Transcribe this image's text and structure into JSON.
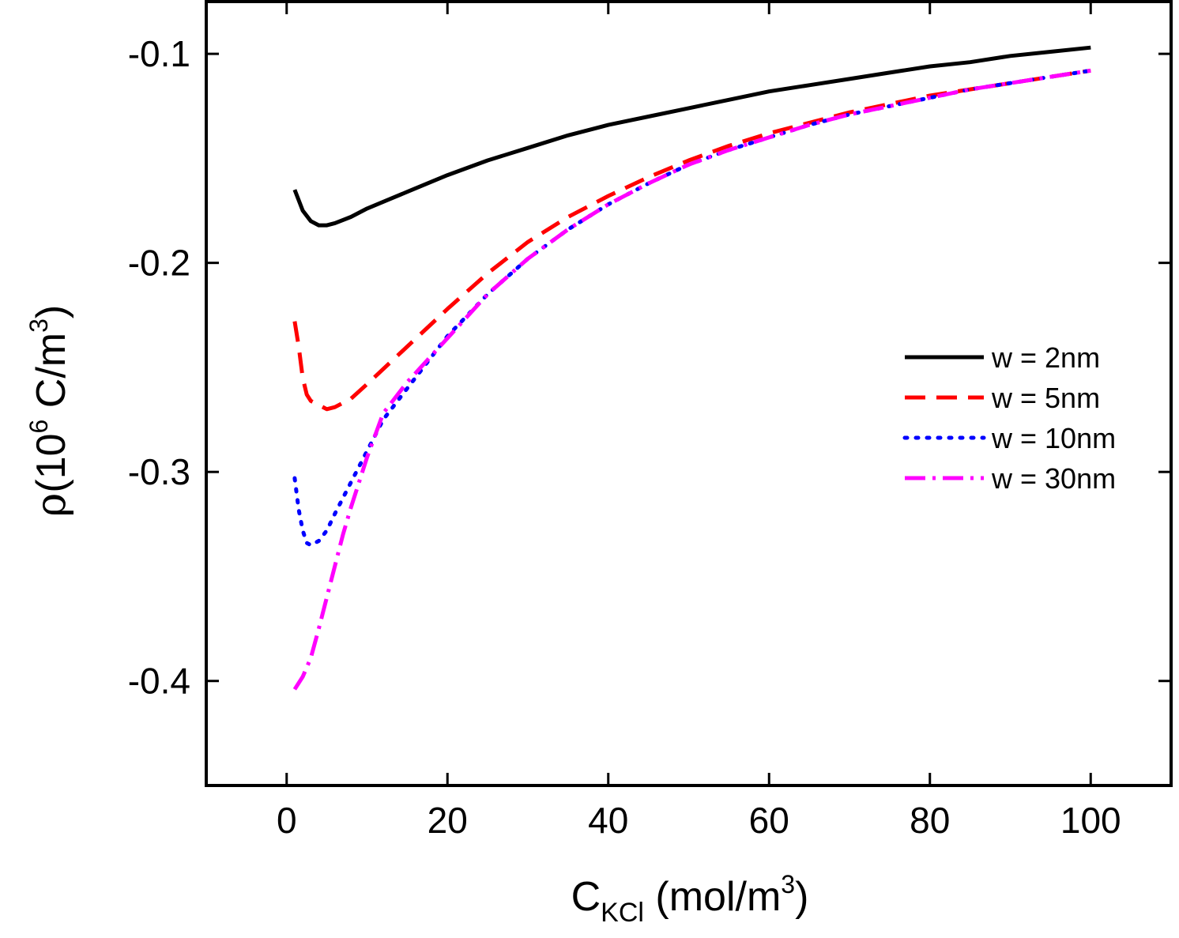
{
  "chart_data": {
    "type": "line",
    "title": "",
    "xlabel": {
      "main": "C",
      "sub": "KCl",
      "unit_pre": " (mol/m",
      "unit_sup": "3",
      "unit_post": ")"
    },
    "ylabel": {
      "greek": "ρ",
      "pre": "(10",
      "sup1": "6",
      "mid": " C/m",
      "sup2": "3",
      "post": ")"
    },
    "xlim": [
      -10,
      110
    ],
    "ylim": [
      -0.45,
      -0.075
    ],
    "x_ticks": [
      0,
      20,
      40,
      60,
      80,
      100
    ],
    "x_tick_labels": [
      "0",
      "20",
      "40",
      "60",
      "80",
      "100"
    ],
    "y_ticks": [
      -0.1,
      -0.2,
      -0.3,
      -0.4
    ],
    "y_tick_labels": [
      "-0.1",
      "-0.2",
      "-0.3",
      "-0.4"
    ],
    "grid": false,
    "legend_position": "right",
    "series": [
      {
        "name": "w = 2nm",
        "color": "#000000",
        "style": "solid",
        "x": [
          1,
          2,
          3,
          4,
          5,
          6,
          8,
          10,
          15,
          20,
          25,
          30,
          35,
          40,
          45,
          50,
          55,
          60,
          65,
          70,
          75,
          80,
          85,
          90,
          95,
          100
        ],
        "y": [
          -0.165,
          -0.175,
          -0.18,
          -0.182,
          -0.182,
          -0.181,
          -0.178,
          -0.174,
          -0.166,
          -0.158,
          -0.151,
          -0.145,
          -0.139,
          -0.134,
          -0.13,
          -0.126,
          -0.122,
          -0.118,
          -0.115,
          -0.112,
          -0.109,
          -0.106,
          -0.104,
          -0.101,
          -0.099,
          -0.097
        ]
      },
      {
        "name": "w = 5nm",
        "color": "#ff0000",
        "style": "dash",
        "x": [
          1,
          1.5,
          2,
          2.5,
          3,
          4,
          5,
          6,
          8,
          10,
          15,
          20,
          25,
          30,
          35,
          40,
          45,
          50,
          55,
          60,
          65,
          70,
          75,
          80,
          85,
          90,
          95,
          100
        ],
        "y": [
          -0.228,
          -0.24,
          -0.255,
          -0.263,
          -0.266,
          -0.268,
          -0.27,
          -0.269,
          -0.265,
          -0.258,
          -0.24,
          -0.222,
          -0.205,
          -0.19,
          -0.178,
          -0.168,
          -0.159,
          -0.151,
          -0.144,
          -0.138,
          -0.133,
          -0.128,
          -0.124,
          -0.12,
          -0.117,
          -0.114,
          -0.111,
          -0.108
        ]
      },
      {
        "name": "w = 10nm",
        "color": "#0000ff",
        "style": "dot",
        "x": [
          1,
          1.5,
          2,
          2.5,
          3,
          4,
          5,
          6,
          8,
          10,
          12,
          15,
          20,
          25,
          30,
          35,
          40,
          45,
          50,
          55,
          60,
          65,
          70,
          75,
          80,
          85,
          90,
          95,
          100
        ],
        "y": [
          -0.303,
          -0.318,
          -0.328,
          -0.334,
          -0.335,
          -0.333,
          -0.328,
          -0.32,
          -0.305,
          -0.29,
          -0.275,
          -0.26,
          -0.235,
          -0.215,
          -0.198,
          -0.184,
          -0.172,
          -0.162,
          -0.153,
          -0.146,
          -0.14,
          -0.134,
          -0.129,
          -0.125,
          -0.121,
          -0.117,
          -0.114,
          -0.111,
          -0.108
        ]
      },
      {
        "name": "w = 30nm",
        "color": "#ff00ff",
        "style": "dashdot",
        "x": [
          1,
          2,
          3,
          4,
          5,
          6,
          7,
          8,
          10,
          12,
          15,
          20,
          25,
          30,
          35,
          40,
          45,
          50,
          55,
          60,
          65,
          70,
          75,
          80,
          85,
          90,
          95,
          100
        ],
        "y": [
          -0.404,
          -0.398,
          -0.389,
          -0.375,
          -0.36,
          -0.345,
          -0.33,
          -0.317,
          -0.293,
          -0.272,
          -0.257,
          -0.236,
          -0.215,
          -0.198,
          -0.184,
          -0.172,
          -0.162,
          -0.153,
          -0.146,
          -0.14,
          -0.134,
          -0.129,
          -0.125,
          -0.121,
          -0.117,
          -0.114,
          -0.111,
          -0.108
        ]
      }
    ]
  }
}
